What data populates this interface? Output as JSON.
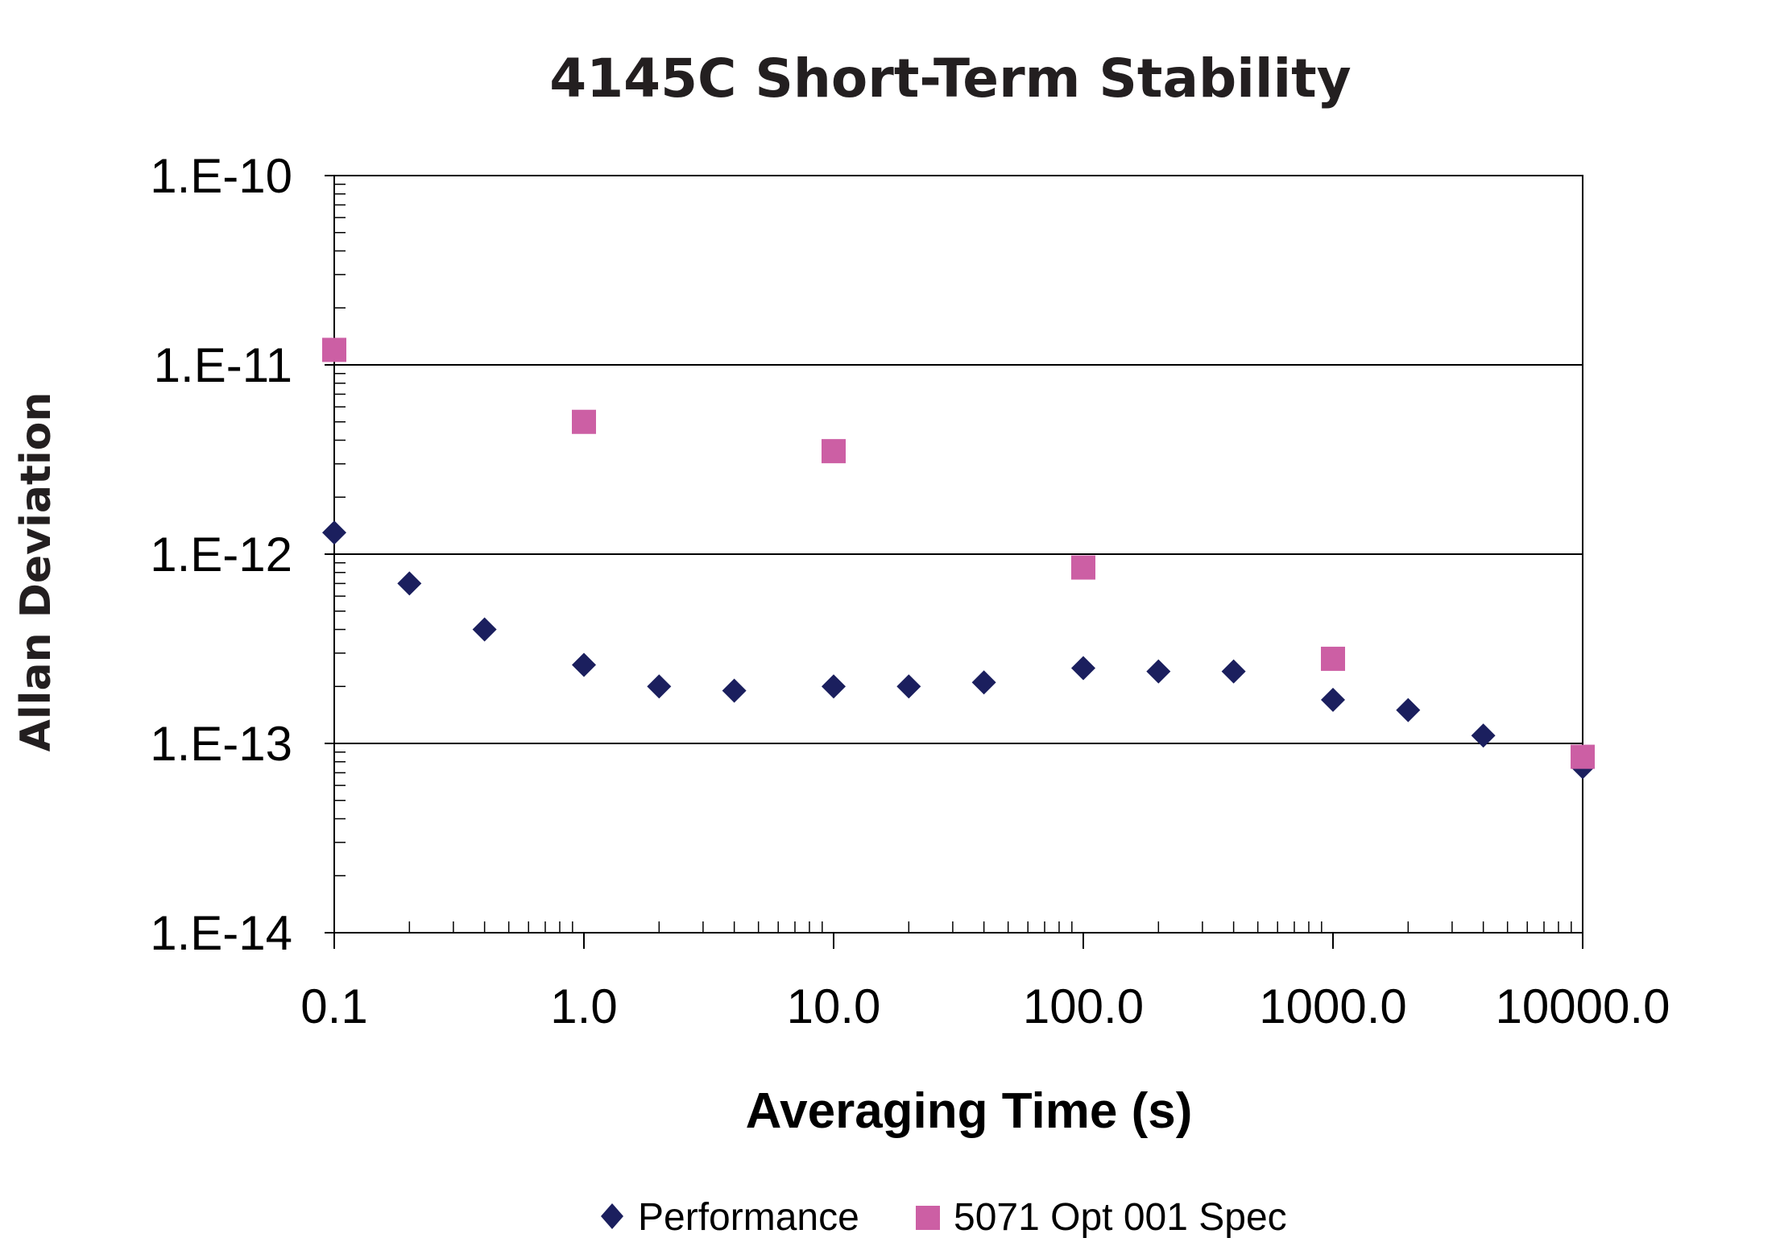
{
  "chart_data": {
    "type": "scatter",
    "title": "4145C Short-Term Stability",
    "xlabel": "Averaging Time (s)",
    "ylabel": "Allan Deviation",
    "x_scale": "log",
    "y_scale": "log",
    "xlim": [
      0.1,
      10000
    ],
    "ylim": [
      1e-14,
      1e-10
    ],
    "x_tick_values": [
      0.1,
      1,
      10,
      100,
      1000,
      10000
    ],
    "x_tick_labels": [
      "0.1",
      "1.0",
      "10.0",
      "100.0",
      "1000.0",
      "10000.0"
    ],
    "y_tick_values": [
      1e-10,
      1e-11,
      1e-12,
      1e-13,
      1e-14
    ],
    "y_tick_labels": [
      "1.E-10",
      "1.E-11",
      "1.E-12",
      "1.E-13",
      "1.E-14"
    ],
    "grid": "horizontal major",
    "legend_position": "bottom",
    "series": [
      {
        "name": "Performance",
        "marker": "diamond",
        "color": "#1b1f5e",
        "x": [
          0.1,
          0.2,
          0.4,
          1,
          2,
          4,
          10,
          20,
          40,
          100,
          200,
          400,
          1000,
          2000,
          4000,
          10000
        ],
        "y": [
          1.3e-12,
          7e-13,
          4e-13,
          2.6e-13,
          2e-13,
          1.9e-13,
          2e-13,
          2e-13,
          2.1e-13,
          2.5e-13,
          2.4e-13,
          2.4e-13,
          1.7e-13,
          1.5e-13,
          1.1e-13,
          7.5e-14
        ]
      },
      {
        "name": "5071 Opt 001 Spec",
        "marker": "square",
        "color": "#cc5fa4",
        "x": [
          0.1,
          1,
          10,
          100,
          1000,
          10000
        ],
        "y": [
          1.2e-11,
          5e-12,
          3.5e-12,
          8.5e-13,
          2.8e-13,
          8.5e-14
        ]
      }
    ]
  }
}
